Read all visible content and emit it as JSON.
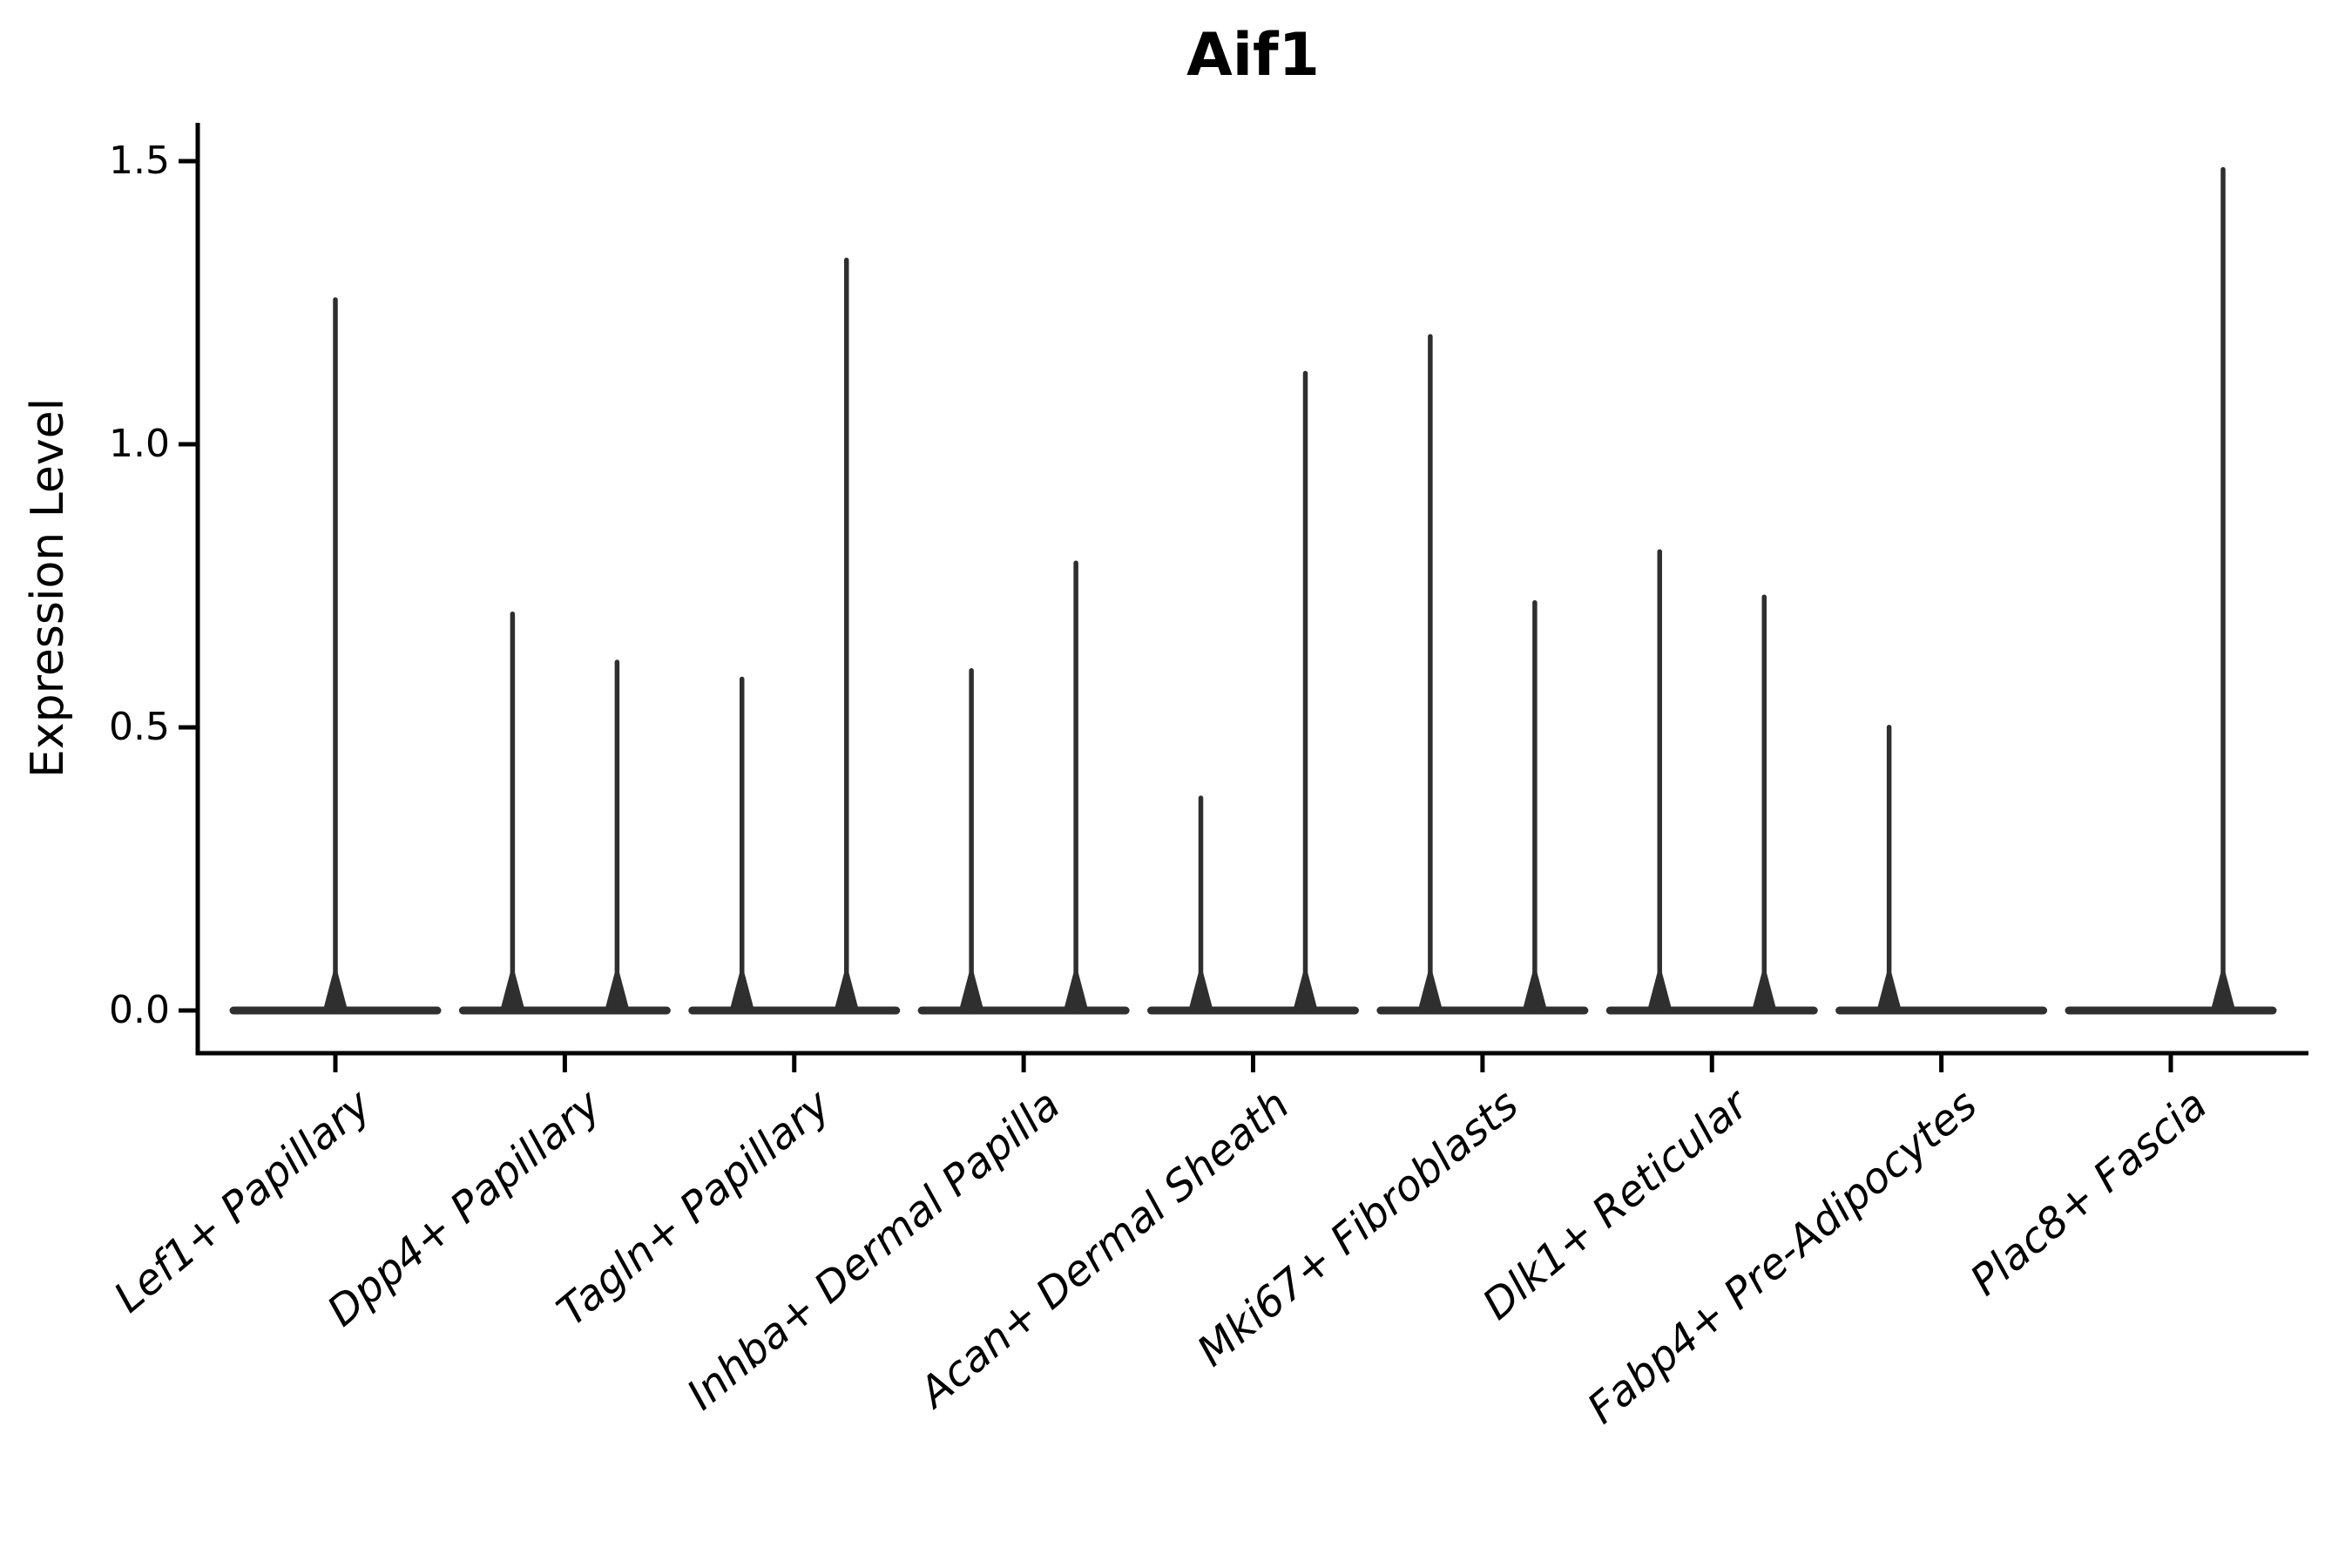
{
  "page": {
    "background": "#ffffff"
  },
  "chart_data": {
    "type": "violin",
    "title": "Aif1",
    "ylabel": "Expression Level",
    "xlabel": "",
    "ylim": [
      -0.075,
      1.568
    ],
    "yticks": [
      0.0,
      0.5,
      1.0,
      1.5
    ],
    "ytick_labels": [
      "0.0",
      "0.5",
      "1.0",
      "1.5"
    ],
    "grid": false,
    "legend": "none",
    "violin_color": "#2f2f2f",
    "axis_color": "#000000",
    "categories": [
      "Lef1+ Papillary",
      "Dpp4+ Papillary",
      "Tagln+ Papillary",
      "Inhba+ Dermal Papilla",
      "Acan+ Dermal Sheath",
      "Mki67+ Fibroblasts",
      "Dlk1+ Reticular",
      "Fabp4+ Pre-Adipocytes",
      "Plac8+ Fascia"
    ],
    "baseline_value": 0.0,
    "violins": [
      {
        "category": "Lef1+ Papillary",
        "spikes": [
          {
            "group": "center",
            "peak": 1.26
          }
        ]
      },
      {
        "category": "Dpp4+ Papillary",
        "spikes": [
          {
            "group": "left",
            "peak": 0.705
          },
          {
            "group": "right",
            "peak": 0.62
          }
        ]
      },
      {
        "category": "Tagln+ Papillary",
        "spikes": [
          {
            "group": "left",
            "peak": 0.59
          },
          {
            "group": "right",
            "peak": 1.33
          }
        ]
      },
      {
        "category": "Inhba+ Dermal Papilla",
        "spikes": [
          {
            "group": "left",
            "peak": 0.605
          },
          {
            "group": "right",
            "peak": 0.795
          }
        ]
      },
      {
        "category": "Acan+ Dermal Sheath",
        "spikes": [
          {
            "group": "left",
            "peak": 0.38
          },
          {
            "group": "right",
            "peak": 1.13
          }
        ]
      },
      {
        "category": "Mki67+ Fibroblasts",
        "spikes": [
          {
            "group": "left",
            "peak": 1.195
          },
          {
            "group": "right",
            "peak": 0.725
          }
        ]
      },
      {
        "category": "Dlk1+ Reticular",
        "spikes": [
          {
            "group": "left",
            "peak": 0.815
          },
          {
            "group": "right",
            "peak": 0.735
          }
        ]
      },
      {
        "category": "Fabp4+ Pre-Adipocytes",
        "spikes": [
          {
            "group": "left",
            "peak": 0.505
          }
        ]
      },
      {
        "category": "Plac8+ Fascia",
        "spikes": [
          {
            "group": "right",
            "peak": 1.49
          }
        ]
      }
    ]
  }
}
